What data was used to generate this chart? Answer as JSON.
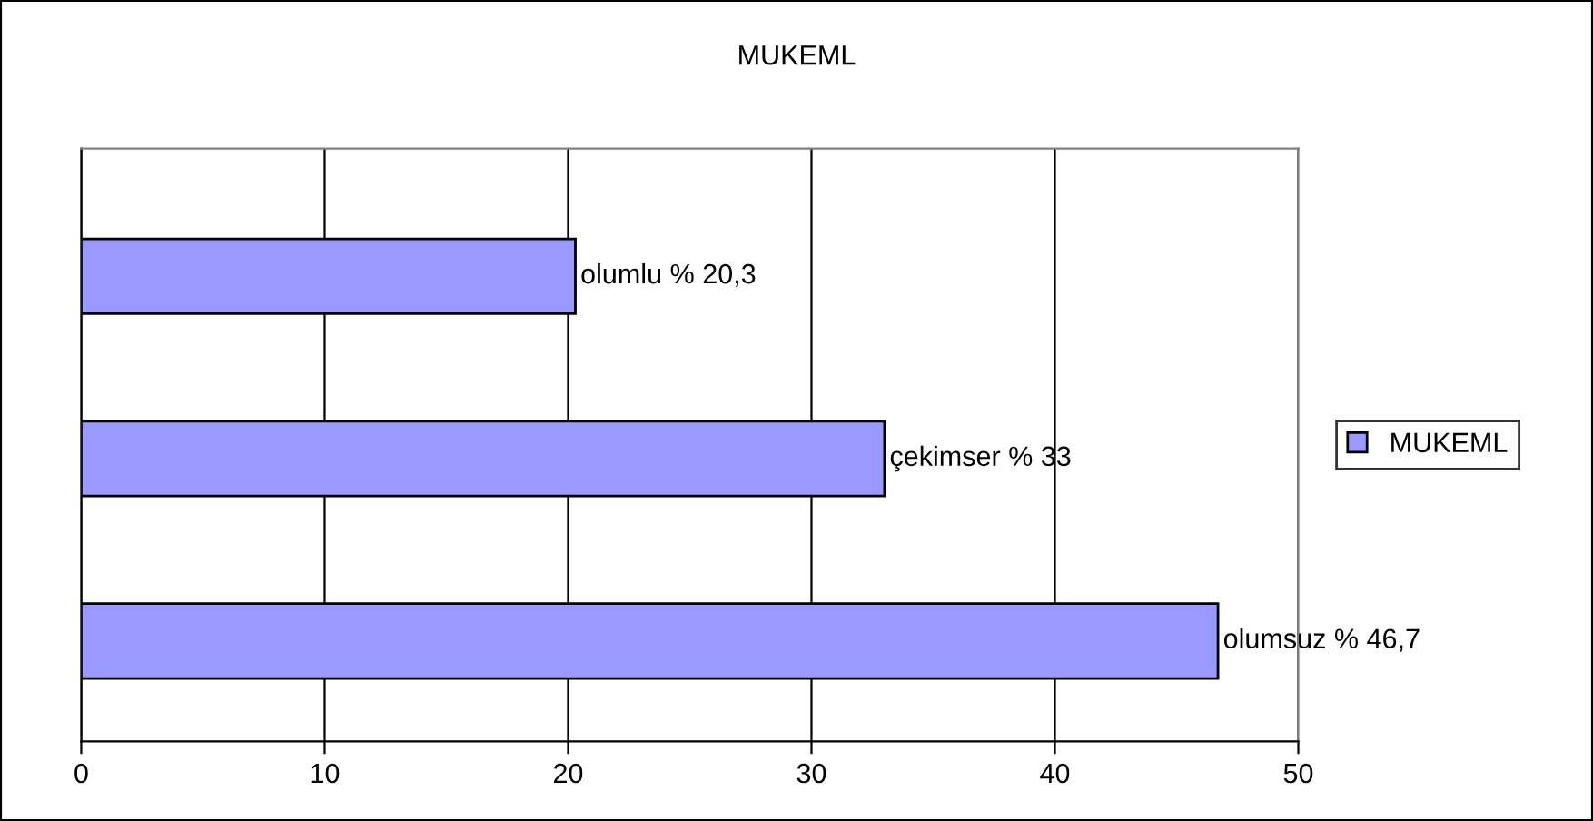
{
  "chart_data": {
    "type": "bar",
    "orientation": "horizontal",
    "title": "MUKEML",
    "categories": [
      null,
      null,
      null
    ],
    "series": [
      {
        "name": "MUKEML",
        "color": "#9999ff",
        "values": [
          20.3,
          33,
          46.7
        ],
        "value_labels": [
          "olumlu % 20,3",
          "çekimser % 33",
          "olumsuz % 46,7"
        ]
      }
    ],
    "xlim": [
      0,
      50
    ],
    "xticks": [
      0,
      10,
      20,
      30,
      40,
      50
    ],
    "grid": "x",
    "legend": "right",
    "tick_labels": "x"
  }
}
